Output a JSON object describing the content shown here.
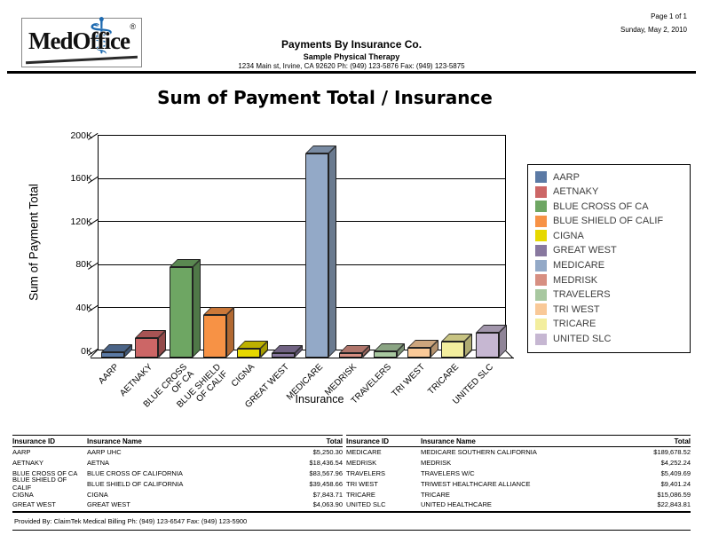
{
  "page": {
    "label": "Page 1 of 1",
    "date": "Sunday, May 2, 2010",
    "footer": "Provided By: ClaimTek Medical Billing Ph: (949) 123-6547 Fax: (949) 123-5900"
  },
  "header": {
    "logo_text": "MedOffice",
    "logo_reg": "®",
    "report_title": "Payments By Insurance Co.",
    "practice_name": "Sample Physical Therapy",
    "practice_address": "1234 Main st, Irvine, CA 92620 Ph: (949) 123-5876 Fax: (949) 123-5875"
  },
  "chart_data": {
    "type": "bar",
    "title": "Sum of Payment Total / Insurance",
    "xlabel": "Insurance",
    "ylabel": "Sum of Payment Total",
    "ylim": [
      0,
      200000
    ],
    "y_ticks": [
      "0K",
      "40K",
      "80K",
      "120K",
      "160K",
      "200K"
    ],
    "grid": true,
    "legend_position": "right",
    "categories": [
      "AARP",
      "AETNAKY",
      "BLUE CROSS OF CA",
      "BLUE SHIELD OF CALIF",
      "CIGNA",
      "GREAT WEST",
      "MEDICARE",
      "MEDRISK",
      "TRAVELERS",
      "TRI WEST",
      "TRICARE",
      "UNITED SLC"
    ],
    "axis_labels": [
      "AARP",
      "AETNAKY",
      "BLUE CROSS\nOF CA",
      "BLUE SHIELD\nOF CALIF",
      "CIGNA",
      "GREAT WEST",
      "MEDICARE",
      "MEDRISK",
      "TRAVELERS",
      "TRI WEST",
      "TRICARE",
      "UNITED SLC"
    ],
    "values": [
      5250.3,
      18436.54,
      83567.96,
      39458.66,
      7843.71,
      4063.9,
      189678.52,
      4252.24,
      5409.69,
      9401.24,
      15086.59,
      22843.81
    ],
    "colors": [
      "#5b7aa5",
      "#cc6666",
      "#6ea663",
      "#f79245",
      "#e6d800",
      "#88789f",
      "#93a9c7",
      "#d78f82",
      "#a8c8a0",
      "#f9c998",
      "#f3ee9e",
      "#c6b7d2"
    ]
  },
  "table": {
    "headers": [
      "Insurance ID",
      "Insurance Name",
      "Total"
    ],
    "left_rows": [
      [
        "AARP",
        "AARP UHC",
        "$5,250.30"
      ],
      [
        "AETNAKY",
        "AETNA",
        "$18,436.54"
      ],
      [
        "BLUE CROSS OF CA",
        "BLUE CROSS OF CALIFORNIA",
        "$83,567.96"
      ],
      [
        "BLUE SHIELD OF CALIF",
        "BLUE SHIELD OF CALIFORNIA",
        "$39,458.66"
      ],
      [
        "CIGNA",
        "CIGNA",
        "$7,843.71"
      ],
      [
        "GREAT WEST",
        "GREAT WEST",
        "$4,063.90"
      ]
    ],
    "right_rows": [
      [
        "MEDICARE",
        "MEDICARE SOUTHERN CALIFORNIA",
        "$189,678.52"
      ],
      [
        "MEDRISK",
        "MEDRISK",
        "$4,252.24"
      ],
      [
        "TRAVELERS",
        "TRAVELERS W/C",
        "$5,409.69"
      ],
      [
        "TRI WEST",
        "TRIWEST HEALTHCARE ALLIANCE",
        "$9,401.24"
      ],
      [
        "TRICARE",
        "TRICARE",
        "$15,086.59"
      ],
      [
        "UNITED SLC",
        "UNITED HEALTHCARE",
        "$22,843.81"
      ]
    ]
  }
}
